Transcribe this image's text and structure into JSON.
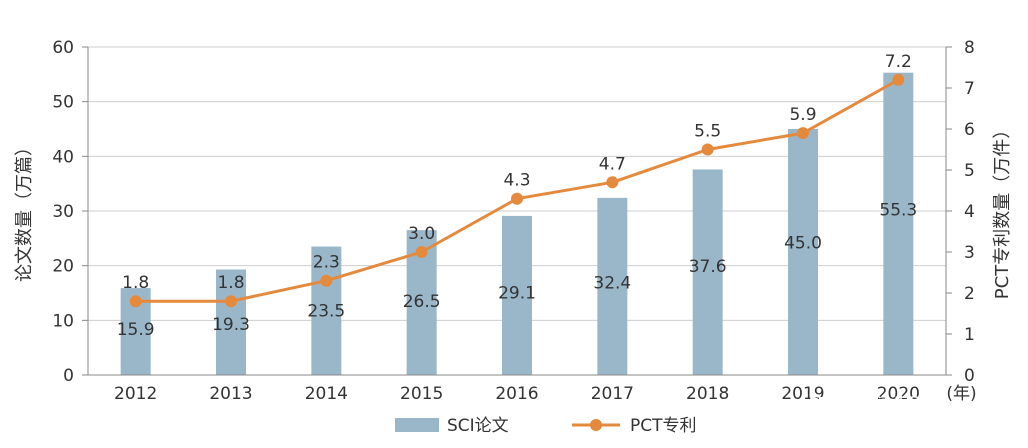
{
  "chart_data": {
    "type": "bar",
    "categories": [
      "2012",
      "2013",
      "2014",
      "2015",
      "2016",
      "2017",
      "2018",
      "2019",
      "2020"
    ],
    "x_unit": "(年)",
    "series": [
      {
        "name": "SCI论文",
        "type": "bar",
        "axis": "left",
        "values": [
          15.9,
          19.3,
          23.5,
          26.5,
          29.1,
          32.4,
          37.6,
          45.0,
          55.3
        ],
        "labels": [
          "15.9",
          "19.3",
          "23.5",
          "26.5",
          "29.1",
          "32.4",
          "37.6",
          "45.0",
          "55.3"
        ]
      },
      {
        "name": "PCT专利",
        "type": "line",
        "axis": "right",
        "values": [
          1.8,
          1.8,
          2.3,
          3.0,
          4.3,
          4.7,
          5.5,
          5.9,
          7.2
        ],
        "labels": [
          "1.8",
          "1.8",
          "2.3",
          "3.0",
          "4.3",
          "4.7",
          "5.5",
          "5.9",
          "7.2"
        ]
      }
    ],
    "y_left": {
      "label": "论文数量（万篇）",
      "lim": [
        0,
        60
      ],
      "ticks": [
        0,
        10,
        20,
        30,
        40,
        50,
        60
      ]
    },
    "y_right": {
      "label": "PCT专利数量（万件）",
      "lim": [
        0,
        8
      ],
      "ticks": [
        0,
        1,
        2,
        3,
        4,
        5,
        6,
        7,
        8
      ]
    },
    "grid": true,
    "legend": "bottom"
  },
  "colors": {
    "bar": "#9ab7c9",
    "line": "#e58a3c",
    "grid": "#cfcfcf",
    "axis": "#888888",
    "text": "#333333"
  },
  "watermark": "知乎 @泊菲莱"
}
